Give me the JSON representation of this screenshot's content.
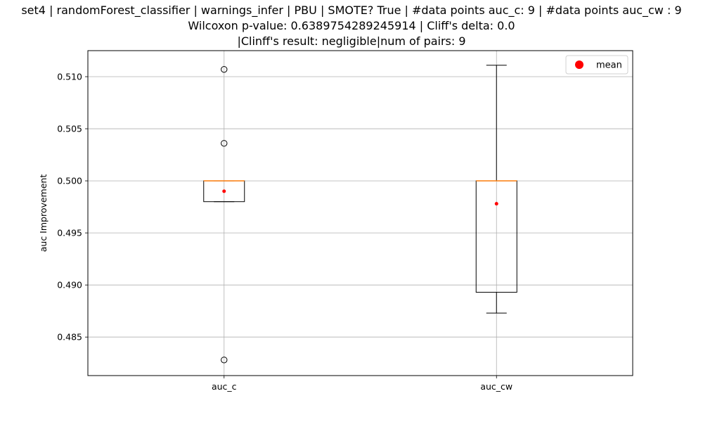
{
  "chart_data": {
    "type": "box",
    "title_lines": [
      "set4 | randomForest_classifier | warnings_infer | PBU | SMOTE? True | #data points auc_c: 9 | #data points auc_cw : 9",
      "Wilcoxon p-value: 0.6389754289245914 | Cliff's delta: 0.0",
      "|Clinff's result: negligible|num of pairs: 9"
    ],
    "xlabel": "",
    "ylabel": "auc Improvement",
    "ylim": [
      0.4813,
      0.5125
    ],
    "yticks": [
      0.485,
      0.49,
      0.495,
      0.5,
      0.505,
      0.51
    ],
    "ytick_labels": [
      "0.485",
      "0.490",
      "0.495",
      "0.500",
      "0.505",
      "0.510"
    ],
    "categories": [
      "auc_c",
      "auc_cw"
    ],
    "grid": true,
    "legend": {
      "position": "top-right",
      "entries": [
        "mean"
      ]
    },
    "colors": {
      "box": "#000000",
      "median": "#ff7f0e",
      "mean": "#ff0000",
      "grid": "#b0b0b0"
    },
    "boxes": [
      {
        "name": "auc_c",
        "whisker_low": 0.498,
        "q1": 0.498,
        "median": 0.5,
        "q3": 0.5,
        "whisker_high": 0.5,
        "mean": 0.499,
        "outliers": [
          0.5107,
          0.5036,
          0.4828
        ]
      },
      {
        "name": "auc_cw",
        "whisker_low": 0.4873,
        "q1": 0.4893,
        "median": 0.5,
        "q3": 0.5,
        "whisker_high": 0.5111,
        "mean": 0.4978,
        "outliers": []
      }
    ]
  }
}
